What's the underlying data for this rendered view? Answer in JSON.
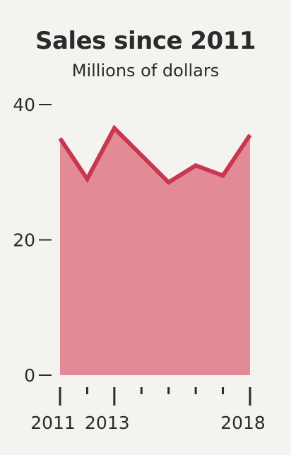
{
  "chart_data": {
    "type": "area",
    "title": "Sales since 2011",
    "subtitle": "Millions of dollars",
    "xlabel": "",
    "ylabel": "",
    "x": [
      2011,
      2012,
      2013,
      2014,
      2015,
      2016,
      2017,
      2018
    ],
    "values": [
      35,
      29,
      36.5,
      32.5,
      28.5,
      31,
      29.5,
      35.5
    ],
    "ylim": [
      0,
      40
    ],
    "xlim": [
      2011,
      2018
    ],
    "y_ticks": [
      0,
      20,
      40
    ],
    "y_tick_labels": [
      "0",
      "20",
      "40"
    ],
    "x_ticks": [
      2011,
      2012,
      2013,
      2014,
      2015,
      2016,
      2017,
      2018
    ],
    "x_tick_labels": [
      "2011",
      "",
      "2013",
      "",
      "",
      "",
      "",
      "2018"
    ],
    "grid": false,
    "colors": {
      "area_fill": "#e38a97",
      "line": "#c8374f",
      "axis": "#2b2b2b"
    }
  }
}
